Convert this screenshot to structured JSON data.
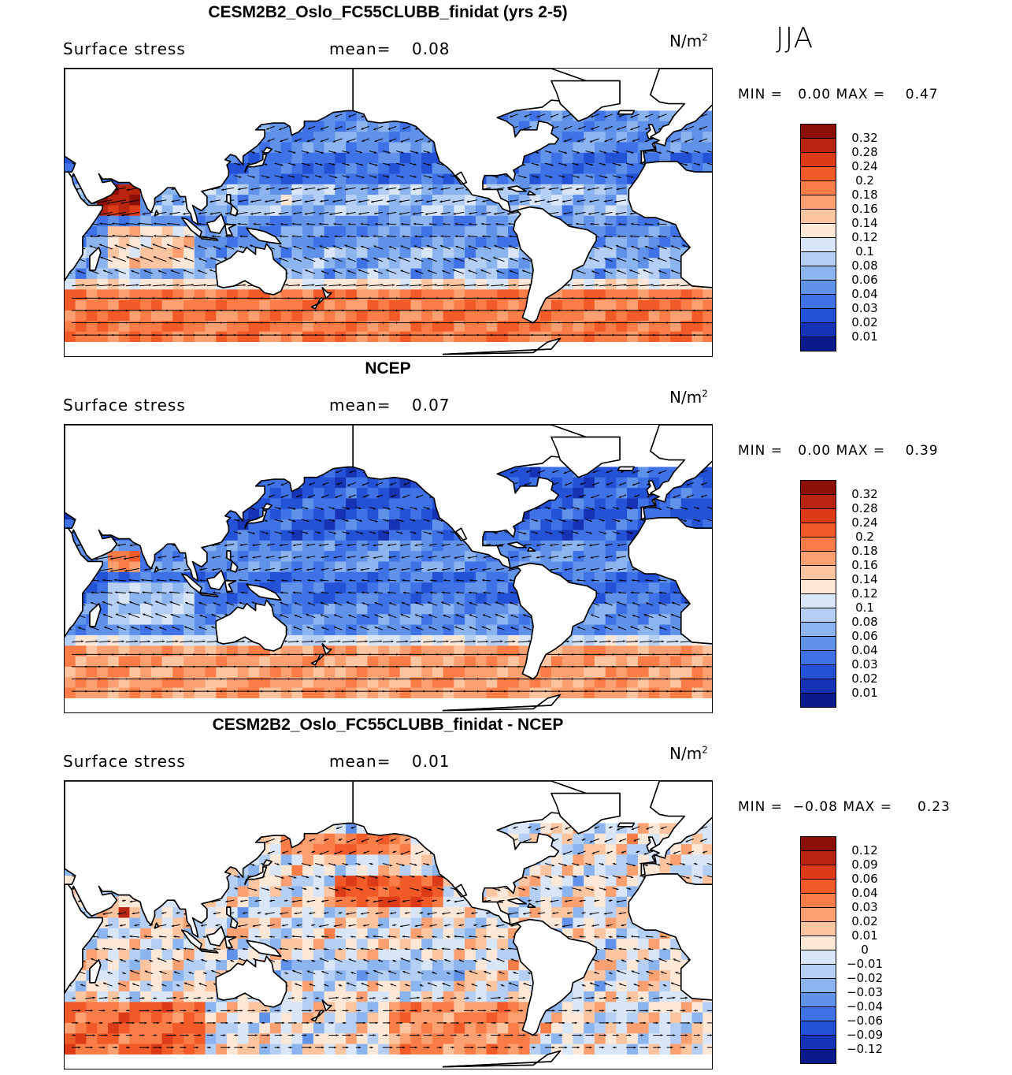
{
  "season": "JJA",
  "panels": [
    {
      "title": "CESM2B2_Oslo_FC55CLUBB_finidat (yrs 2-5)",
      "variable": "Surface stress",
      "mean_label": "mean=",
      "mean_value": "0.08",
      "units_base": "N/m",
      "units_exp": "2",
      "min_label": "MIN =",
      "min_value": "0.00",
      "max_label": "MAX =",
      "max_value": "0.47",
      "legend_levels": [
        "0.32",
        "0.28",
        "0.24",
        "0.2",
        "0.18",
        "0.16",
        "0.14",
        "0.12",
        "0.1",
        "0.08",
        "0.06",
        "0.04",
        "0.03",
        "0.02",
        "0.01"
      ],
      "legend_colors": [
        "#8b0f07",
        "#b72410",
        "#dd3a17",
        "#f25a28",
        "#fa7d47",
        "#fca071",
        "#fdc4a0",
        "#fde7d6",
        "#d8e6f7",
        "#b4cff3",
        "#8cb4ee",
        "#6192ea",
        "#3e72e6",
        "#2452d6",
        "#1533b4",
        "#0a1a8c"
      ]
    },
    {
      "title": "NCEP",
      "variable": "Surface stress",
      "mean_label": "mean=",
      "mean_value": "0.07",
      "units_base": "N/m",
      "units_exp": "2",
      "min_label": "MIN =",
      "min_value": "0.00",
      "max_label": "MAX =",
      "max_value": "0.39",
      "legend_levels": [
        "0.32",
        "0.28",
        "0.24",
        "0.2",
        "0.18",
        "0.16",
        "0.14",
        "0.12",
        "0.1",
        "0.08",
        "0.06",
        "0.04",
        "0.03",
        "0.02",
        "0.01"
      ],
      "legend_colors": [
        "#8b0f07",
        "#b72410",
        "#dd3a17",
        "#f25a28",
        "#fa7d47",
        "#fca071",
        "#fdc4a0",
        "#fde7d6",
        "#d8e6f7",
        "#b4cff3",
        "#8cb4ee",
        "#6192ea",
        "#3e72e6",
        "#2452d6",
        "#1533b4",
        "#0a1a8c"
      ]
    },
    {
      "title": "CESM2B2_Oslo_FC55CLUBB_finidat - NCEP",
      "variable": "Surface stress",
      "mean_label": "mean=",
      "mean_value": "0.01",
      "units_base": "N/m",
      "units_exp": "2",
      "min_label": "MIN =",
      "min_value": "−0.08",
      "max_label": "MAX =",
      "max_value": "0.23",
      "legend_levels": [
        "0.12",
        "0.09",
        "0.06",
        "0.04",
        "0.03",
        "0.02",
        "0.01",
        "0",
        "−0.01",
        "−0.02",
        "−0.03",
        "−0.04",
        "−0.06",
        "−0.09",
        "−0.12"
      ],
      "legend_colors": [
        "#8b0f07",
        "#b72410",
        "#dd3a17",
        "#f25a28",
        "#fa7d47",
        "#fca071",
        "#fdc4a0",
        "#fde7d6",
        "#d8e6f7",
        "#b4cff3",
        "#8cb4ee",
        "#6192ea",
        "#3e72e6",
        "#2452d6",
        "#1533b4",
        "#0a1a8c"
      ]
    }
  ],
  "colors": {
    "land": "#ffffff",
    "coast": "#000000",
    "arrow": "#000000"
  }
}
